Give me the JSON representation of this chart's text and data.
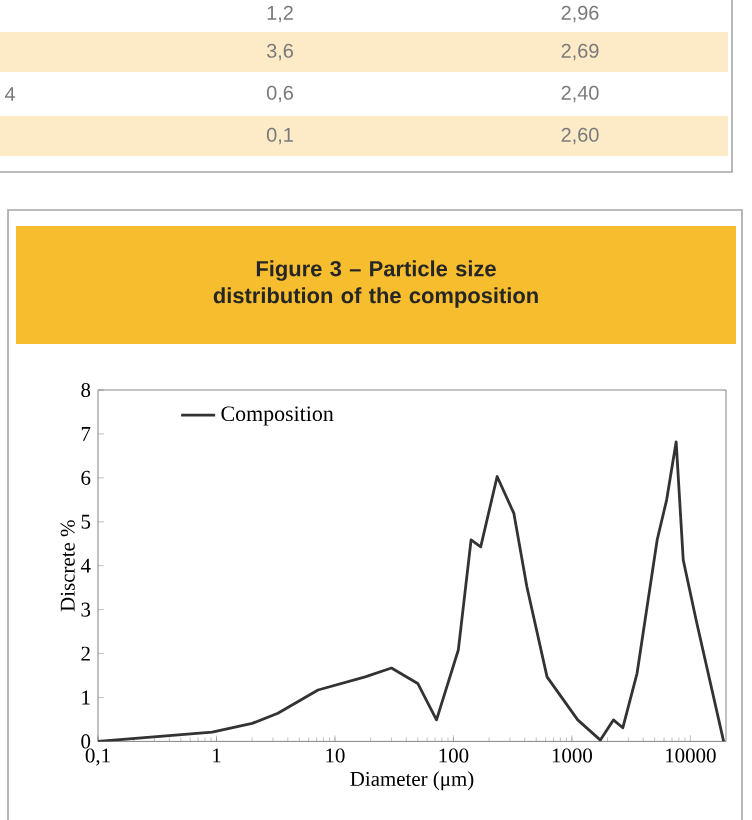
{
  "chart_data": [
    {
      "type": "other",
      "annotations": [
        "1,2",
        "2,96",
        "3,6",
        "2,69",
        "4",
        "0,6",
        "2,40",
        "0,1",
        "2,60"
      ]
    },
    {
      "type": "line",
      "title": "Figure 3 – Particle size distribution of the composition",
      "xlabel": "Diameter (μm)",
      "ylabel": "Discrete %",
      "log": "x",
      "legend": "top left",
      "xlim": [
        0.1,
        20000
      ],
      "ylim": [
        0,
        8
      ],
      "xticks": [
        {
          "value": 0.1,
          "label": "0,1"
        },
        1,
        10,
        100,
        1000,
        10000
      ],
      "yticks": [
        0,
        1,
        2,
        3,
        4,
        5,
        6,
        7,
        8
      ],
      "series": [
        {
          "name": "Composition",
          "color": "#333333",
          "x": [
            0.1,
            0.92,
            2.0,
            3.3,
            7.2,
            18,
            30,
            50,
            72,
            110,
            141,
            170,
            234,
            324,
            417,
            617,
            1120,
            1740,
            2240,
            2690,
            3550,
            5250,
            6310,
            7590,
            8710,
            11200,
            19100
          ],
          "values": [
            0,
            0.21,
            0.41,
            0.64,
            1.17,
            1.47,
            1.67,
            1.32,
            0.49,
            2.08,
            4.59,
            4.43,
            6.03,
            5.19,
            3.52,
            1.47,
            0.49,
            0.03,
            0.49,
            0.31,
            1.55,
            4.59,
            5.5,
            6.82,
            4.13,
            2.76,
            0
          ]
        }
      ]
    }
  ]
}
